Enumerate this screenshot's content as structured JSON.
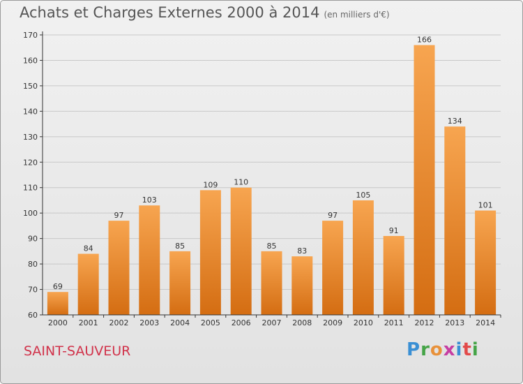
{
  "header": {
    "title": "Achats et Charges Externes 2000 à 2014",
    "unit": "(en milliers d'€)"
  },
  "footer": {
    "commune": "SAINT-SAUVEUR",
    "logo": "Proxiti"
  },
  "colors": {
    "bar_light": "#f7a550",
    "bar_dark": "#d46d12",
    "grid": "#c8c8c8",
    "axis": "#333333"
  },
  "chart_data": {
    "type": "bar",
    "categories": [
      "2000",
      "2001",
      "2002",
      "2003",
      "2004",
      "2005",
      "2006",
      "2007",
      "2008",
      "2009",
      "2010",
      "2011",
      "2012",
      "2013",
      "2014"
    ],
    "values": [
      69,
      84,
      97,
      103,
      85,
      109,
      110,
      85,
      83,
      97,
      105,
      91,
      166,
      134,
      101
    ],
    "title": "Achats et Charges Externes 2000 à 2014",
    "subtitle": "(en milliers d'€)",
    "xlabel": "",
    "ylabel": "",
    "ylim": [
      60,
      170
    ],
    "yticks": [
      60,
      70,
      80,
      90,
      100,
      110,
      120,
      130,
      140,
      150,
      160,
      170
    ],
    "grid": true,
    "data_labels": true
  }
}
